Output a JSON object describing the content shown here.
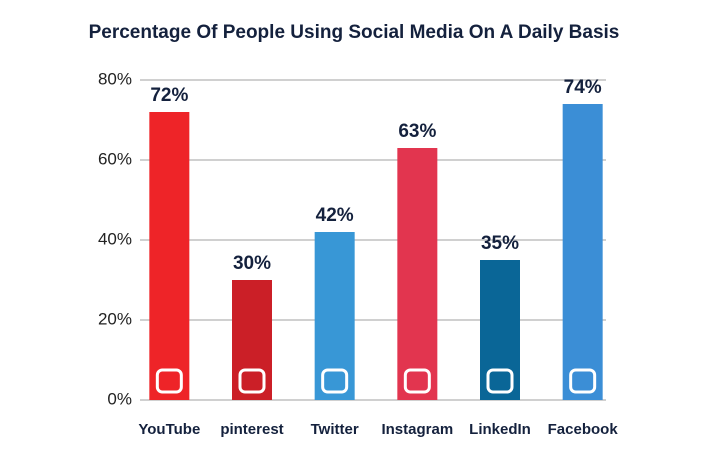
{
  "chart_data": {
    "type": "bar",
    "title": "Percentage Of People Using Social Media On A Daily Basis",
    "categories": [
      "YouTube",
      "pinterest",
      "Twitter",
      "Instagram",
      "LinkedIn",
      "Facebook"
    ],
    "values": [
      72,
      30,
      42,
      63,
      35,
      74
    ],
    "value_labels": [
      "72%",
      "30%",
      "42%",
      "63%",
      "35%",
      "74%"
    ],
    "colors": [
      "#ee2428",
      "#cb1f27",
      "#3897d6",
      "#e2354f",
      "#0a6697",
      "#3b8ed6"
    ],
    "ylim": [
      0,
      80
    ],
    "yticks": [
      {
        "value": 0,
        "label": "0%"
      },
      {
        "value": 20,
        "label": "20%"
      },
      {
        "value": 40,
        "label": "40%"
      },
      {
        "value": 60,
        "label": "60%"
      },
      {
        "value": 80,
        "label": "80%"
      }
    ],
    "grid": true
  }
}
